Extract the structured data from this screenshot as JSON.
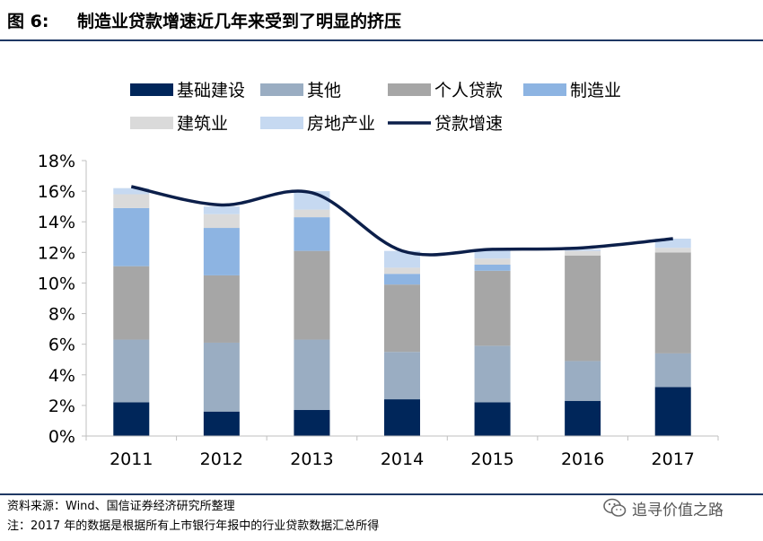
{
  "figure": {
    "label": "图 6:",
    "title": "制造业贷款增速近几年来受到了明显的挤压"
  },
  "footer": {
    "source": "资料来源：Wind、国信证券经济研究所整理",
    "note": "注：2017 年的数据是根据所有上市银行年报中的行业贷款数据汇总所得"
  },
  "watermark": {
    "text": "追寻价值之路",
    "icon": "wechat-icon"
  },
  "colors": {
    "infrastructure": "#00265a",
    "other": "#9aadc2",
    "personal": "#a6a6a6",
    "manufacturing": "#8db4e2",
    "construction": "#dadada",
    "real_estate": "#c6d9f1",
    "growth_line": "#0c1f4a",
    "frame": "#1f3864"
  },
  "chart_data": {
    "type": "bar",
    "stacked": true,
    "categories": [
      "2011",
      "2012",
      "2013",
      "2014",
      "2015",
      "2016",
      "2017"
    ],
    "ylim": [
      0,
      0.18
    ],
    "yticks": [
      "0%",
      "2%",
      "4%",
      "6%",
      "8%",
      "10%",
      "12%",
      "14%",
      "16%",
      "18%"
    ],
    "yticks_values": [
      0,
      0.02,
      0.04,
      0.06,
      0.08,
      0.1,
      0.12,
      0.14,
      0.16,
      0.18
    ],
    "series": [
      {
        "name": "基础建设",
        "key": "infrastructure",
        "values": [
          0.022,
          0.016,
          0.017,
          0.024,
          0.022,
          0.023,
          0.032
        ]
      },
      {
        "name": "其他",
        "key": "other",
        "values": [
          0.041,
          0.045,
          0.046,
          0.031,
          0.037,
          0.026,
          0.022
        ]
      },
      {
        "name": "个人贷款",
        "key": "personal",
        "values": [
          0.048,
          0.044,
          0.058,
          0.044,
          0.049,
          0.069,
          0.066
        ]
      },
      {
        "name": "制造业",
        "key": "manufacturing",
        "values": [
          0.038,
          0.031,
          0.022,
          0.007,
          0.004,
          0.0,
          0.0
        ]
      },
      {
        "name": "建筑业",
        "key": "construction",
        "values": [
          0.009,
          0.009,
          0.005,
          0.004,
          0.004,
          0.003,
          0.003
        ]
      },
      {
        "name": "房地产业",
        "key": "real_estate",
        "values": [
          0.004,
          0.005,
          0.012,
          0.011,
          0.006,
          0.001,
          0.006
        ]
      }
    ],
    "line": {
      "name": "贷款增速",
      "key": "growth_line",
      "values": [
        0.163,
        0.151,
        0.159,
        0.121,
        0.122,
        0.123,
        0.129
      ]
    },
    "legend": {
      "position": "top",
      "rows": [
        [
          "基础建设",
          "其他",
          "个人贷款",
          "制造业"
        ],
        [
          "建筑业",
          "房地产业",
          "贷款增速"
        ]
      ]
    }
  }
}
